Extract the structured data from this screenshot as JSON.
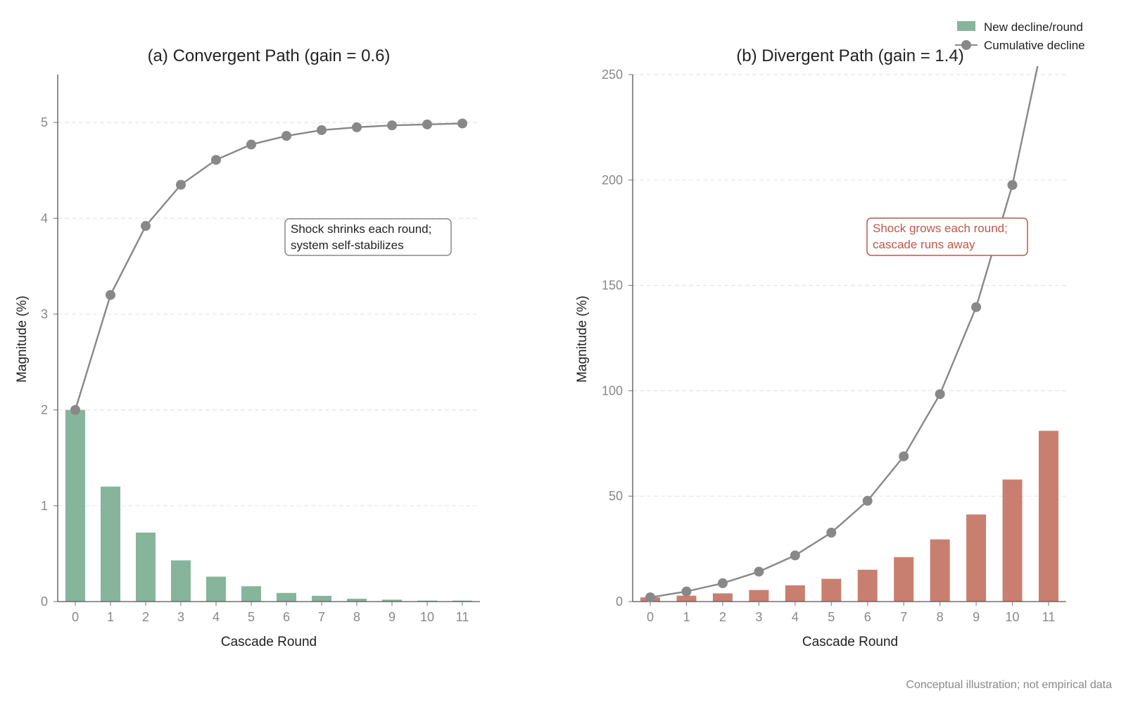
{
  "legend": {
    "bar_label": "New decline/round",
    "line_label": "Cumulative decline",
    "placement": "top-right"
  },
  "footnote": "Conceptual illustration; not empirical data",
  "colors": {
    "convergent_bar": "#86b59c",
    "divergent_bar": "#c97f70",
    "line": "#888888",
    "annotation_convergent": "#222222",
    "annotation_divergent": "#c0574a",
    "grid": "#e6e6e6"
  },
  "chart_data": [
    {
      "type": "bar",
      "title": "(a) Convergent Path (gain = 0.6)",
      "xlabel": "Cascade Round",
      "ylabel": "Magnitude (%)",
      "categories": [
        "0",
        "1",
        "2",
        "3",
        "4",
        "5",
        "6",
        "7",
        "8",
        "9",
        "10",
        "11"
      ],
      "ylim": [
        0,
        5.5
      ],
      "yticks": [
        0,
        1,
        2,
        3,
        4,
        5
      ],
      "grid": true,
      "series": [
        {
          "name": "New decline/round",
          "kind": "bar",
          "values": [
            2.0,
            1.2,
            0.72,
            0.43,
            0.26,
            0.16,
            0.09,
            0.06,
            0.03,
            0.02,
            0.01,
            0.01
          ]
        },
        {
          "name": "Cumulative decline",
          "kind": "line",
          "values": [
            2.0,
            3.2,
            3.92,
            4.35,
            4.61,
            4.77,
            4.86,
            4.92,
            4.95,
            4.97,
            4.98,
            4.99
          ]
        }
      ],
      "annotation": [
        "Shock shrinks each round;",
        "system self-stabilizes"
      ]
    },
    {
      "type": "bar",
      "title": "(b) Divergent Path (gain = 1.4)",
      "xlabel": "Cascade Round",
      "ylabel": "Magnitude (%)",
      "categories": [
        "0",
        "1",
        "2",
        "3",
        "4",
        "5",
        "6",
        "7",
        "8",
        "9",
        "10",
        "11"
      ],
      "ylim": [
        0,
        250
      ],
      "yticks": [
        0,
        50,
        100,
        150,
        200,
        250
      ],
      "grid": true,
      "series": [
        {
          "name": "New decline/round",
          "kind": "bar",
          "values": [
            2.0,
            2.8,
            3.9,
            5.5,
            7.7,
            10.8,
            15.1,
            21.1,
            29.5,
            41.3,
            57.9,
            81.0
          ]
        },
        {
          "name": "Cumulative decline",
          "kind": "line",
          "values": [
            2.0,
            4.8,
            8.7,
            14.2,
            21.9,
            32.7,
            47.8,
            68.9,
            98.4,
            139.7,
            197.6,
            278.6
          ]
        }
      ],
      "annotation": [
        "Shock grows each round;",
        "cascade runs away"
      ]
    }
  ]
}
